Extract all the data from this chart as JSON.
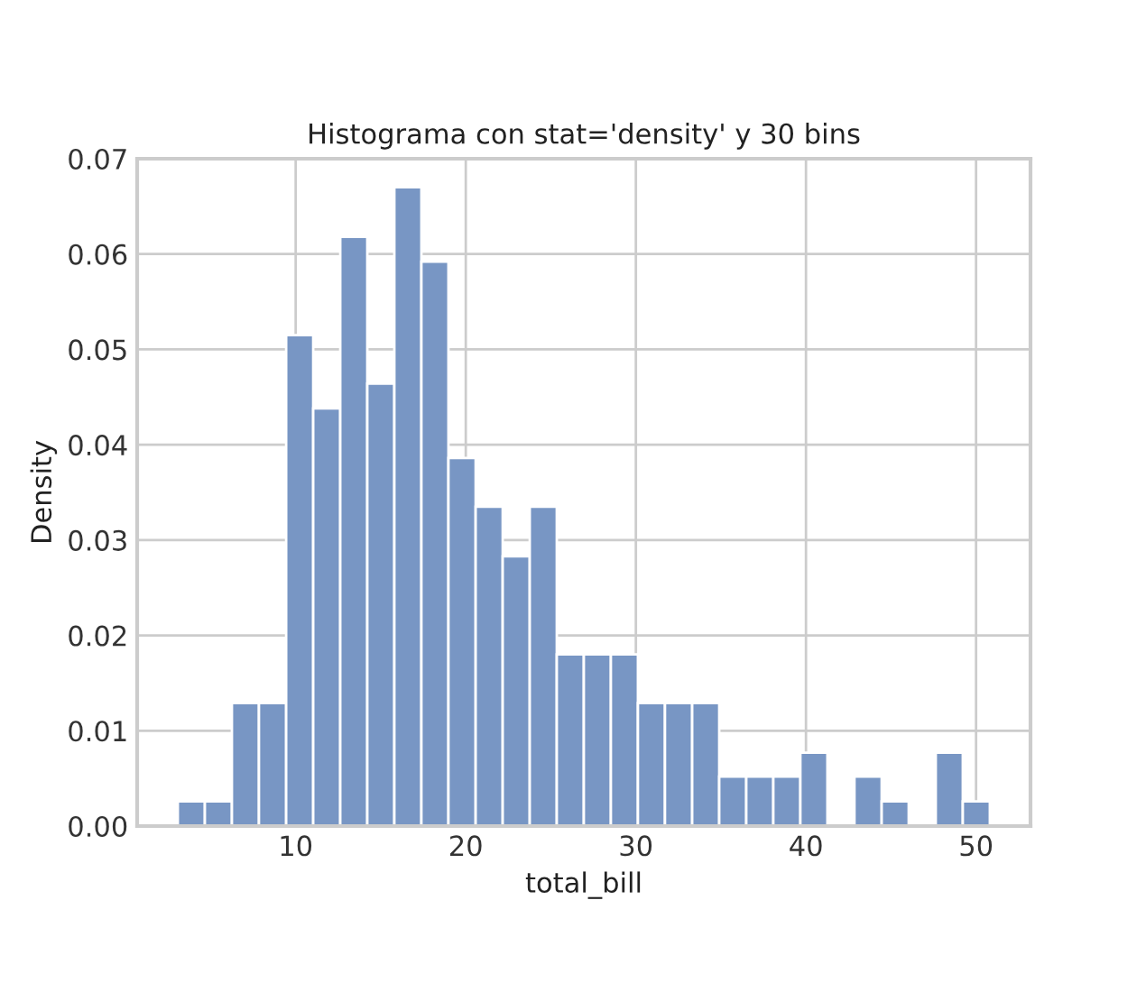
{
  "chart_data": {
    "type": "histogram",
    "title": "Histograma con stat='density' y 30 bins",
    "xlabel": "total_bill",
    "ylabel": "Density",
    "bins": [
      3.07,
      4.66,
      6.25,
      7.84,
      9.44,
      11.03,
      12.62,
      14.21,
      15.8,
      17.39,
      18.98,
      20.58,
      22.17,
      23.76,
      25.35,
      26.94,
      28.53,
      30.12,
      31.71,
      33.31,
      34.9,
      36.49,
      38.08,
      39.67,
      41.26,
      42.85,
      44.45,
      46.04,
      47.63,
      49.22,
      50.81
    ],
    "values": [
      0.0026,
      0.0026,
      0.0129,
      0.0129,
      0.0515,
      0.0438,
      0.0618,
      0.0464,
      0.067,
      0.0592,
      0.0386,
      0.0335,
      0.0283,
      0.0335,
      0.018,
      0.018,
      0.018,
      0.0129,
      0.0129,
      0.0129,
      0.0052,
      0.0052,
      0.0052,
      0.0077,
      0,
      0.0052,
      0.0026,
      0,
      0.0077,
      0.0026
    ],
    "color": "#7896c4",
    "xlim": [
      0.68,
      53.2
    ],
    "xticks": [
      10,
      20,
      30,
      40,
      50
    ],
    "ylim": [
      0,
      0.07
    ],
    "yticks": [
      {
        "value": 0,
        "label": "0.00"
      },
      {
        "value": 0.01,
        "label": "0.01"
      },
      {
        "value": 0.02,
        "label": "0.02"
      },
      {
        "value": 0.03,
        "label": "0.03"
      },
      {
        "value": 0.04,
        "label": "0.04"
      },
      {
        "value": 0.05,
        "label": "0.05"
      },
      {
        "value": 0.06,
        "label": "0.06"
      },
      {
        "value": 0.07,
        "label": "0.07"
      }
    ],
    "grid": true,
    "legend": false
  }
}
